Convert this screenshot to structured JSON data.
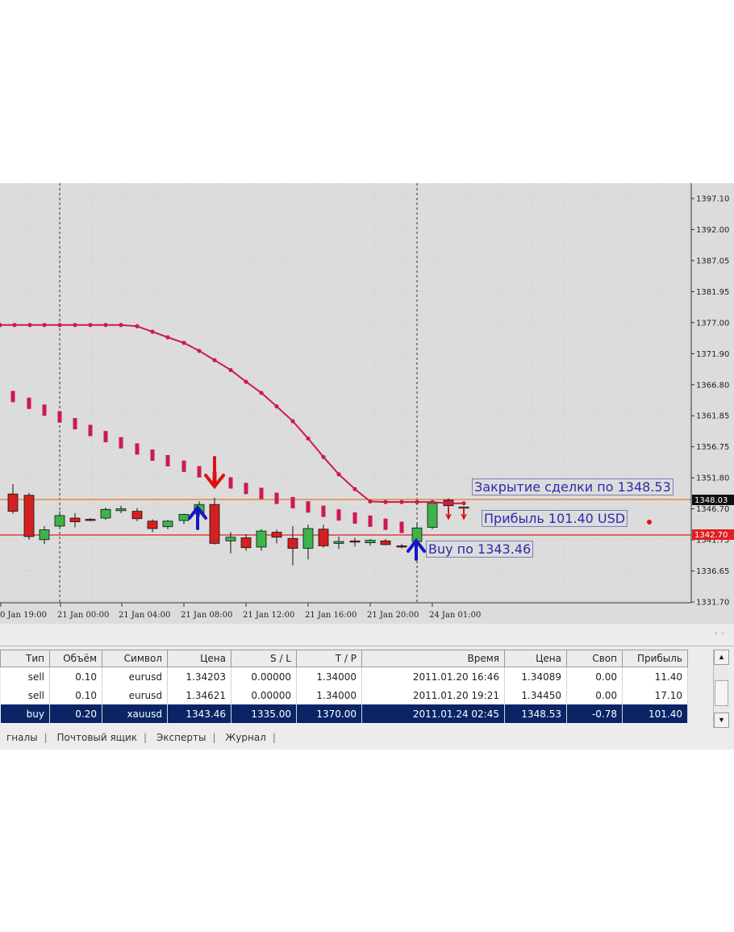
{
  "chart": {
    "price_axis_labels": [
      "1397.10",
      "1392.00",
      "1387.05",
      "1381.95",
      "1377.00",
      "1371.90",
      "1366.80",
      "1361.85",
      "1356.75",
      "1351.80",
      "1346.70",
      "1341.75",
      "1336.65",
      "1331.70"
    ],
    "current_price_label": "1348.03",
    "stoploss_price_label": "1342.70",
    "time_axis_labels": [
      "0 Jan 19:00",
      "21 Jan 00:00",
      "21 Jan 04:00",
      "21 Jan 08:00",
      "21 Jan 12:00",
      "21 Jan 16:00",
      "21 Jan 20:00",
      "24 Jan 01:00"
    ],
    "annotations": {
      "close": "Закрытие сделки по 1348.53",
      "profit": "Прибыль 101.40 USD",
      "buy": "Buy по 1343.46"
    },
    "colors": {
      "background": "#dcdcdc",
      "bull_candle": "#3cb44a",
      "bear_candle": "#d42020",
      "indicator": "#cc1a4e",
      "buy_arrow": "#1515c8",
      "sell_arrow": "#e01010"
    }
  },
  "terminal": {
    "columns": [
      "Тип",
      "Объём",
      "Символ",
      "Цена",
      "S / L",
      "T / P",
      "Время",
      "Цена",
      "Своп",
      "Прибыль"
    ],
    "rows": [
      {
        "type": "sell",
        "volume": "0.10",
        "symbol": "eurusd",
        "price": "1.34203",
        "sl": "0.00000",
        "tp": "1.34000",
        "time": "2011.01.20 16:46",
        "cur_price": "1.34089",
        "swap": "0.00",
        "profit": "11.40"
      },
      {
        "type": "sell",
        "volume": "0.10",
        "symbol": "eurusd",
        "price": "1.34621",
        "sl": "0.00000",
        "tp": "1.34000",
        "time": "2011.01.20 19:21",
        "cur_price": "1.34450",
        "swap": "0.00",
        "profit": "17.10"
      },
      {
        "type": "buy",
        "volume": "0.20",
        "symbol": "xauusd",
        "price": "1343.46",
        "sl": "1335.00",
        "tp": "1370.00",
        "time": "2011.01.24 02:45",
        "cur_price": "1348.53",
        "swap": "-0.78",
        "profit": "101.40"
      }
    ],
    "tabs": [
      "гналы",
      "Почтовый ящик",
      "Эксперты",
      "Журнал"
    ]
  }
}
